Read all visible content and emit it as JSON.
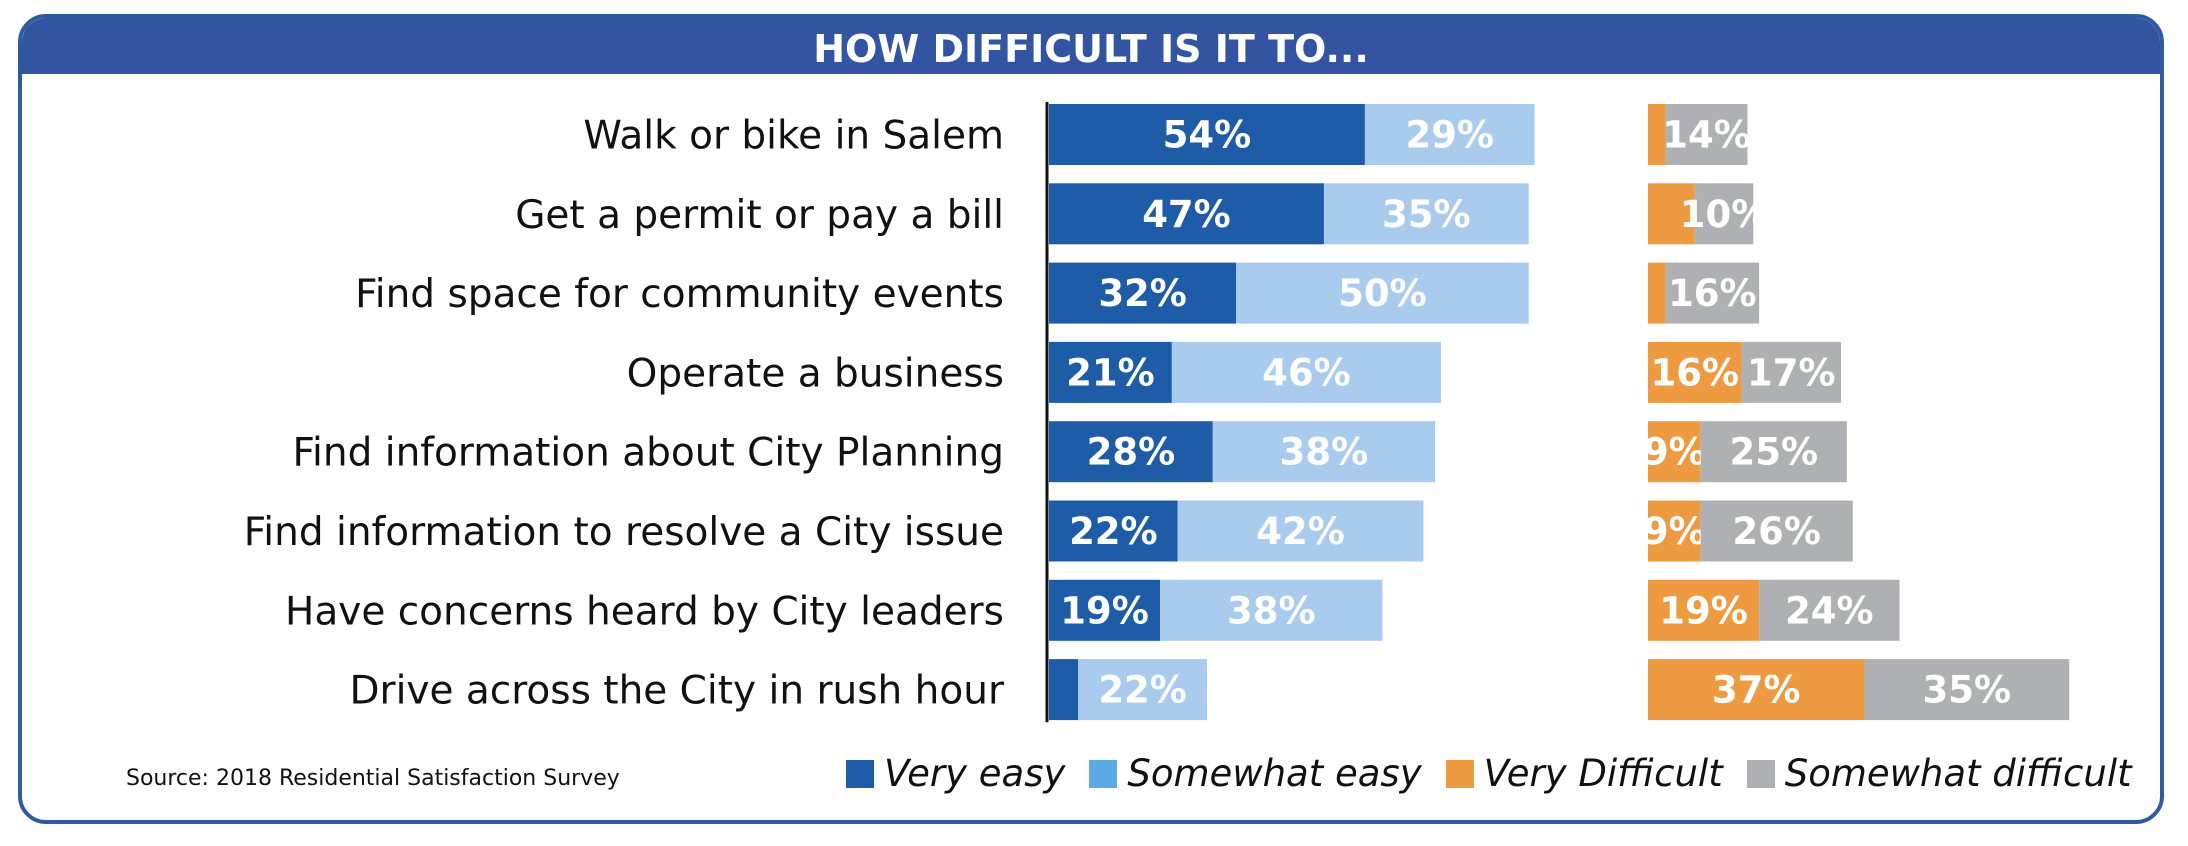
{
  "banner": {
    "title": "HOW DIFFICULT IS IT TO..."
  },
  "source": "Source: 2018 Residential Satisfaction Survey",
  "colors": {
    "very_easy": "#1f5ca8",
    "somewhat_easy": "#a9cbee",
    "very_difficult": "#ee9a40",
    "somewhat_difficult": "#aeb0b3",
    "somewhat_easy_legend": "#5aaae3",
    "frame": "#2e5a9f"
  },
  "legend": [
    {
      "label": "Very easy",
      "color": "#1f5ca8"
    },
    {
      "label": "Somewhat easy",
      "color": "#5aaae3"
    },
    {
      "label": "Very Difficult",
      "color": "#ee9a40"
    },
    {
      "label": "Somewhat difficult",
      "color": "#aeb0b3"
    }
  ],
  "chart_data": {
    "type": "bar",
    "orientation": "horizontal",
    "stacked": true,
    "title": "HOW DIFFICULT IS IT TO...",
    "categories": [
      "Walk or bike in Salem",
      "Get a permit or pay a bill",
      "Find space for community events",
      "Operate a business",
      "Find information about City Planning",
      "Find information to resolve a City issue",
      "Have concerns heard by City leaders",
      "Drive across the City in rush hour"
    ],
    "series": [
      {
        "name": "Very easy",
        "group": "easy",
        "values": [
          54,
          47,
          32,
          21,
          28,
          22,
          19,
          5
        ],
        "labels": [
          "54%",
          "47%",
          "32%",
          "21%",
          "28%",
          "22%",
          "19%",
          ""
        ]
      },
      {
        "name": "Somewhat easy",
        "group": "easy",
        "values": [
          29,
          35,
          50,
          46,
          38,
          42,
          38,
          22
        ],
        "labels": [
          "29%",
          "35%",
          "50%",
          "46%",
          "38%",
          "42%",
          "38%",
          "22%"
        ]
      },
      {
        "name": "Very Difficult",
        "group": "difficult",
        "values": [
          3,
          8,
          3,
          16,
          9,
          9,
          19,
          37
        ],
        "labels": [
          "",
          "",
          "",
          "16%",
          "9%",
          "9%",
          "19%",
          "37%"
        ]
      },
      {
        "name": "Somewhat difficult",
        "group": "difficult",
        "values": [
          14,
          10,
          16,
          17,
          25,
          26,
          24,
          35
        ],
        "labels": [
          "14%",
          "10%",
          "16%",
          "17%",
          "25%",
          "26%",
          "24%",
          "35%"
        ]
      }
    ],
    "grid": false,
    "legend_position": "bottom"
  }
}
